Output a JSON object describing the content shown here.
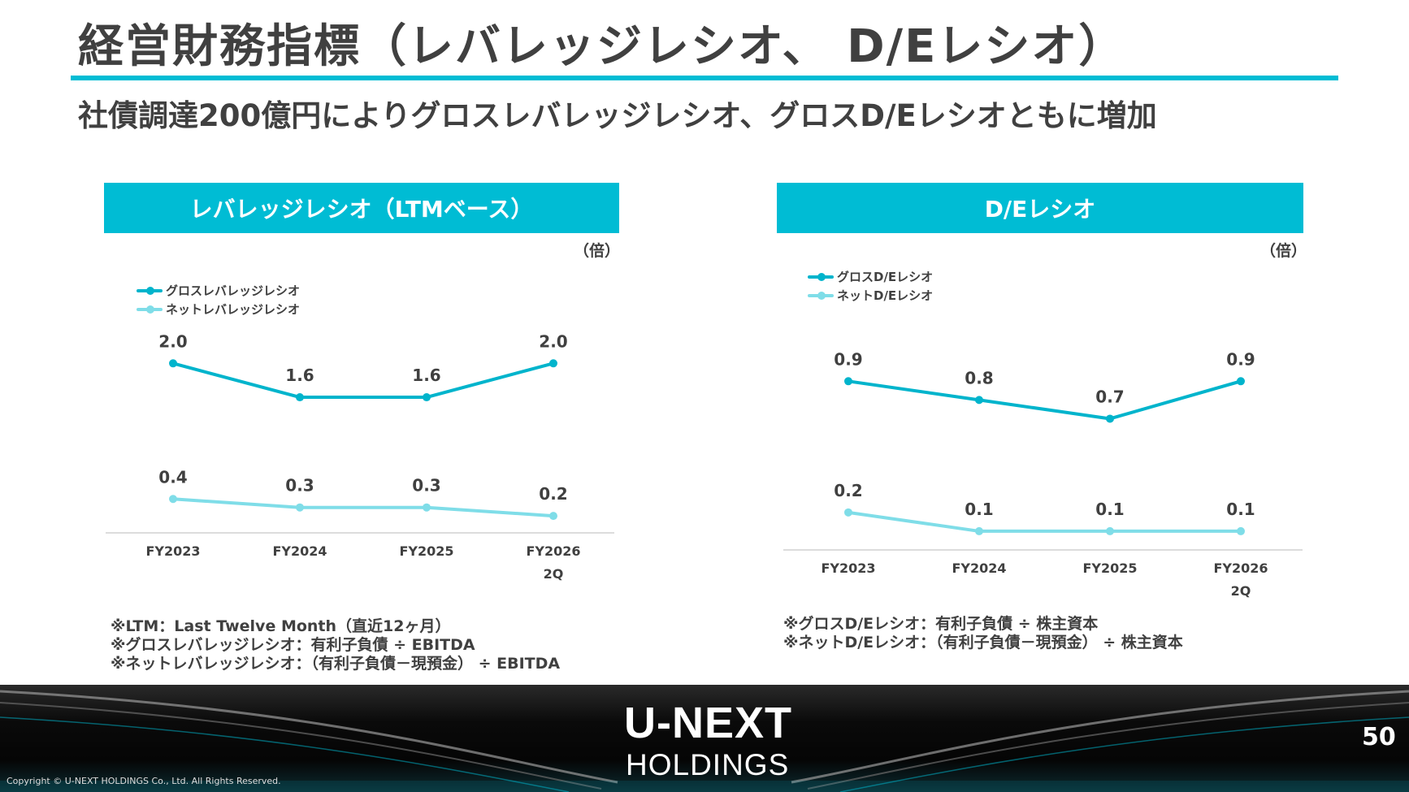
{
  "page": {
    "title": "経営財務指標（レバレッジレシオ、 D/Eレシオ）",
    "subtitle": "社債調達200億円によりグロスレバレッジレシオ、グロスD/Eレシオともに増加",
    "page_number": "50",
    "copyright": "Copyright © U-NEXT HOLDINGS Co., Ltd. All Rights Reserved.",
    "logo_line1": "U-NEXT",
    "logo_line2": "HOLDINGS",
    "accent_color": "#00bcd4",
    "light_color": "#7fdde8"
  },
  "left_panel": {
    "header": "レバレッジレシオ（LTMベース）",
    "unit": "（倍）",
    "notes": [
      "※LTM：Last Twelve Month（直近12ヶ月）",
      "※グロスレバレッジレシオ：有利子負債 ÷ EBITDA",
      "※ネットレバレッジレシオ：（有利子負債－現預金） ÷ EBITDA"
    ]
  },
  "right_panel": {
    "header": "D/Eレシオ",
    "unit": "（倍）",
    "notes": [
      "※グロスD/Eレシオ：有利子負債 ÷ 株主資本",
      "※ネットD/Eレシオ：（有利子負債－現預金） ÷ 株主資本"
    ]
  },
  "chart_data": [
    {
      "type": "line",
      "categories": [
        [
          "FY2023"
        ],
        [
          "FY2024"
        ],
        [
          "FY2025"
        ],
        [
          "FY2026",
          "2Q"
        ]
      ],
      "series": [
        {
          "name": "グロスレバレッジレシオ",
          "values": [
            2.0,
            1.6,
            1.6,
            2.0
          ],
          "labels": [
            "2.0",
            "1.6",
            "1.6",
            "2.0"
          ],
          "color": "#00b4cc"
        },
        {
          "name": "ネットレバレッジレシオ",
          "values": [
            0.4,
            0.3,
            0.3,
            0.2
          ],
          "labels": [
            "0.4",
            "0.3",
            "0.3",
            "0.2"
          ],
          "color": "#7fdde8"
        }
      ],
      "ylim": [
        0,
        2.3
      ]
    },
    {
      "type": "line",
      "categories": [
        [
          "FY2023"
        ],
        [
          "FY2024"
        ],
        [
          "FY2025"
        ],
        [
          "FY2026",
          "2Q"
        ]
      ],
      "series": [
        {
          "name": "グロスD/Eレシオ",
          "values": [
            0.9,
            0.8,
            0.7,
            0.9
          ],
          "labels": [
            "0.9",
            "0.8",
            "0.7",
            "0.9"
          ],
          "color": "#00b4cc"
        },
        {
          "name": "ネットD/Eレシオ",
          "values": [
            0.2,
            0.1,
            0.1,
            0.1
          ],
          "labels": [
            "0.2",
            "0.1",
            "0.1",
            "0.1"
          ],
          "color": "#7fdde8"
        }
      ],
      "ylim": [
        0,
        1.3
      ]
    }
  ]
}
